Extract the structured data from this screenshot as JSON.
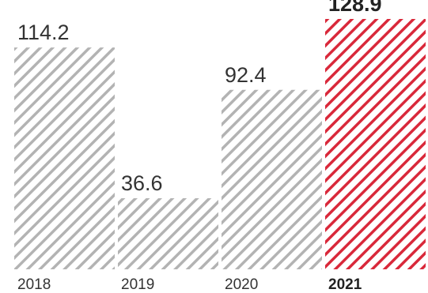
{
  "chart_data": {
    "type": "bar",
    "title": "",
    "xlabel": "",
    "ylabel": "",
    "categories": [
      "2018",
      "2019",
      "2020",
      "2021"
    ],
    "values": [
      114.2,
      36.6,
      92.4,
      128.9
    ],
    "value_labels": [
      "114.2",
      "36.6",
      "92.4",
      "128.9"
    ],
    "highlight_category": "2021",
    "ylim": [
      0,
      128.9
    ],
    "grid": false,
    "colors": {
      "default_hatch": "#b3b3b3",
      "highlight_hatch": "#d9283a",
      "text": "#333333",
      "highlight_text": "#222222"
    }
  }
}
